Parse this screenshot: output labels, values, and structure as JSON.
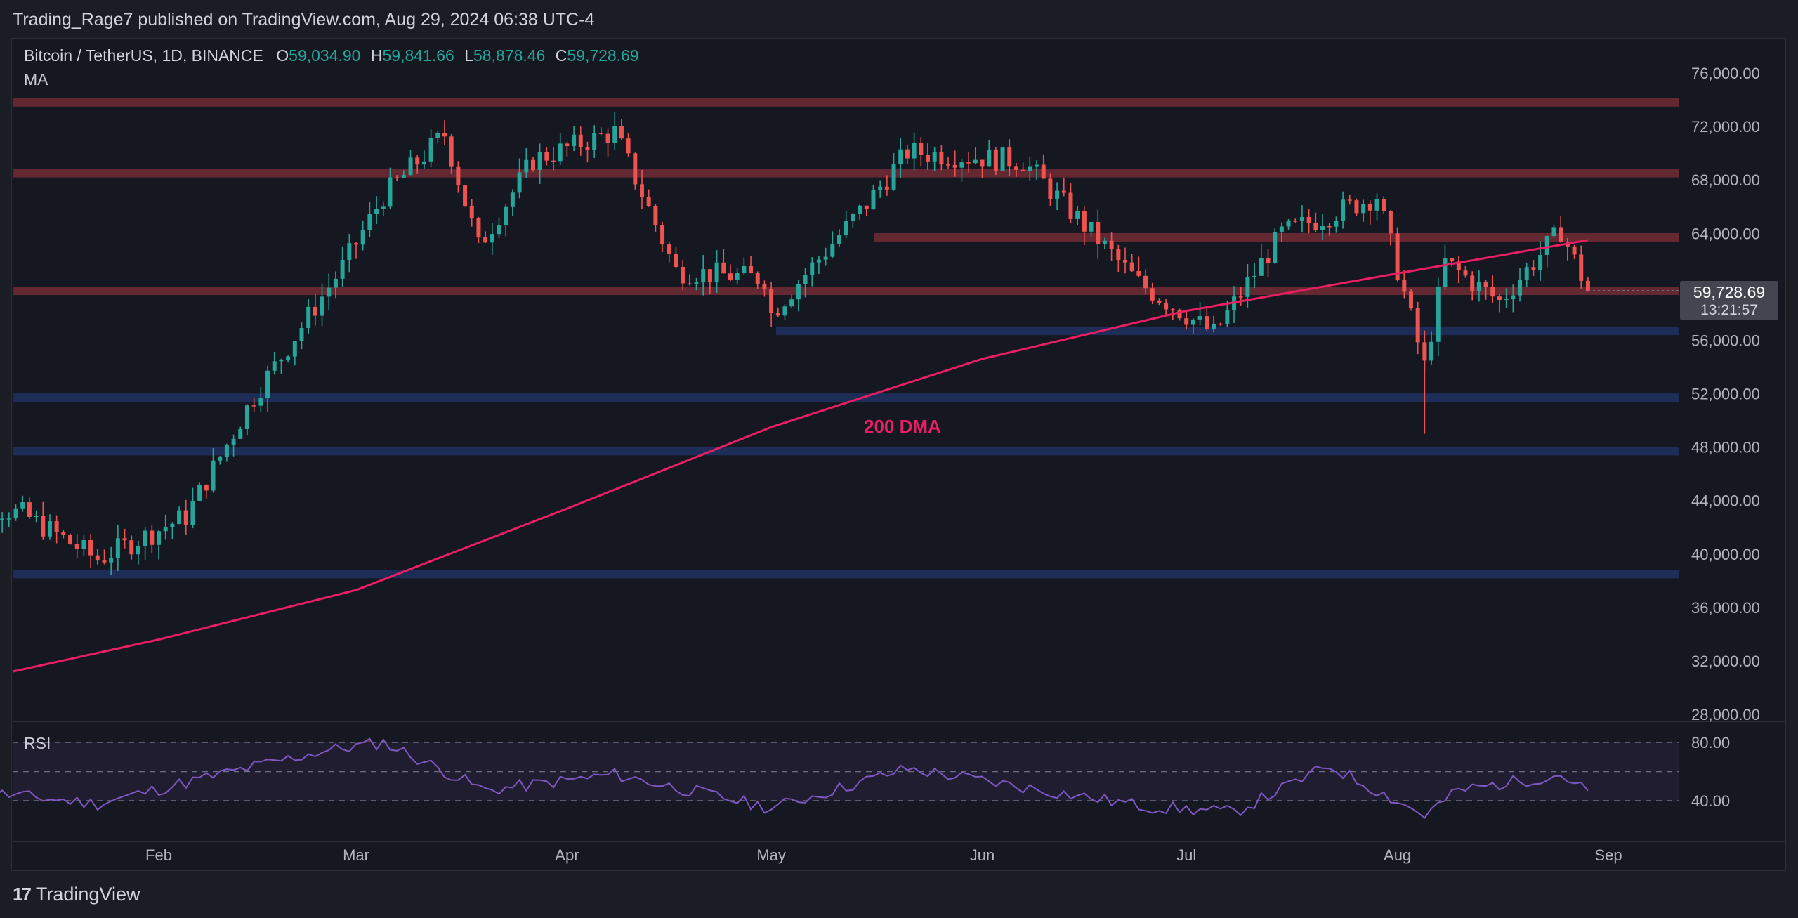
{
  "header": {
    "publisher": "Trading_Rage7 published on TradingView.com, Aug 29, 2024 06:38 UTC-4"
  },
  "legend": {
    "symbol": "Bitcoin / TetherUS, 1D, BINANCE",
    "o_label": "O",
    "o_value": "59,034.90",
    "h_label": "H",
    "h_value": "59,841.66",
    "l_label": "L",
    "l_value": "58,878.46",
    "c_label": "C",
    "c_value": "59,728.69",
    "ma_label": "MA"
  },
  "rsi": {
    "label": "RSI",
    "levels": [
      "80.00",
      "40.00"
    ]
  },
  "last_price": {
    "price": "59,728.69",
    "countdown": "13:21:57"
  },
  "brand": {
    "logo": "17",
    "name": "TradingView"
  },
  "colors": {
    "up": "#26a69a",
    "down": "#ef5350",
    "ma": "#e91e63",
    "resistance": "#6b2a33",
    "support": "#1f2d5c",
    "rsi_line": "#7e57c2"
  },
  "chart_data": {
    "type": "candlestick",
    "title": "",
    "ylim": [
      27000,
      78000
    ],
    "yticks": [
      "76,000.00",
      "72,000.00",
      "68,000.00",
      "64,000.00",
      "60,000.00",
      "56,000.00",
      "52,000.00",
      "48,000.00",
      "44,000.00",
      "40,000.00",
      "36,000.00",
      "32,000.00",
      "28,000.00"
    ],
    "xticks": [
      "Feb",
      "Mar",
      "Apr",
      "May",
      "Jun",
      "Jul",
      "Aug",
      "Sep"
    ],
    "resistance_levels": [
      73800,
      68500,
      63700,
      59700
    ],
    "support_levels": [
      56700,
      51700,
      47700,
      38500
    ],
    "annotations": [
      {
        "text": "200 DMA"
      }
    ],
    "ma200": [
      {
        "date": "2024-01-01",
        "y": 31200
      },
      {
        "date": "2024-02-01",
        "y": 33600
      },
      {
        "date": "2024-03-01",
        "y": 37300
      },
      {
        "date": "2024-04-01",
        "y": 43400
      },
      {
        "date": "2024-05-01",
        "y": 49500
      },
      {
        "date": "2024-06-01",
        "y": 54600
      },
      {
        "date": "2024-07-01",
        "y": 58200
      },
      {
        "date": "2024-08-01",
        "y": 61000
      },
      {
        "date": "2024-08-29",
        "y": 63500
      }
    ],
    "series_close": [
      {
        "date": "2024-01-01",
        "y": 44200
      },
      {
        "date": "2024-01-12",
        "y": 43000
      },
      {
        "date": "2024-01-23",
        "y": 39600
      },
      {
        "date": "2024-02-05",
        "y": 42800
      },
      {
        "date": "2024-02-15",
        "y": 51800
      },
      {
        "date": "2024-02-28",
        "y": 61500
      },
      {
        "date": "2024-03-05",
        "y": 66800
      },
      {
        "date": "2024-03-14",
        "y": 71400
      },
      {
        "date": "2024-03-19",
        "y": 63000
      },
      {
        "date": "2024-03-27",
        "y": 69500
      },
      {
        "date": "2024-04-08",
        "y": 71600
      },
      {
        "date": "2024-04-17",
        "y": 61200
      },
      {
        "date": "2024-04-30",
        "y": 60600
      },
      {
        "date": "2024-05-01",
        "y": 58000
      },
      {
        "date": "2024-05-15",
        "y": 66200
      },
      {
        "date": "2024-05-21",
        "y": 70100
      },
      {
        "date": "2024-06-07",
        "y": 69400
      },
      {
        "date": "2024-06-24",
        "y": 60300
      },
      {
        "date": "2024-07-05",
        "y": 56500
      },
      {
        "date": "2024-07-15",
        "y": 64000
      },
      {
        "date": "2024-07-29",
        "y": 66800
      },
      {
        "date": "2024-08-05",
        "y": 54000
      },
      {
        "date": "2024-08-08",
        "y": 61800
      },
      {
        "date": "2024-08-16",
        "y": 58900
      },
      {
        "date": "2024-08-25",
        "y": 64200
      },
      {
        "date": "2024-08-29",
        "y": 59700
      }
    ],
    "series_rsi": [
      {
        "date": "2024-01-01",
        "y": 48
      },
      {
        "date": "2024-01-23",
        "y": 38
      },
      {
        "date": "2024-02-10",
        "y": 58
      },
      {
        "date": "2024-02-25",
        "y": 74
      },
      {
        "date": "2024-03-05",
        "y": 80
      },
      {
        "date": "2024-03-20",
        "y": 47
      },
      {
        "date": "2024-04-08",
        "y": 58
      },
      {
        "date": "2024-05-01",
        "y": 35
      },
      {
        "date": "2024-05-21",
        "y": 62
      },
      {
        "date": "2024-06-25",
        "y": 36
      },
      {
        "date": "2024-07-08",
        "y": 32
      },
      {
        "date": "2024-07-22",
        "y": 64
      },
      {
        "date": "2024-08-05",
        "y": 30
      },
      {
        "date": "2024-08-10",
        "y": 47
      },
      {
        "date": "2024-08-25",
        "y": 58
      },
      {
        "date": "2024-08-29",
        "y": 46
      }
    ],
    "rsi_ylim": [
      20,
      100
    ]
  }
}
